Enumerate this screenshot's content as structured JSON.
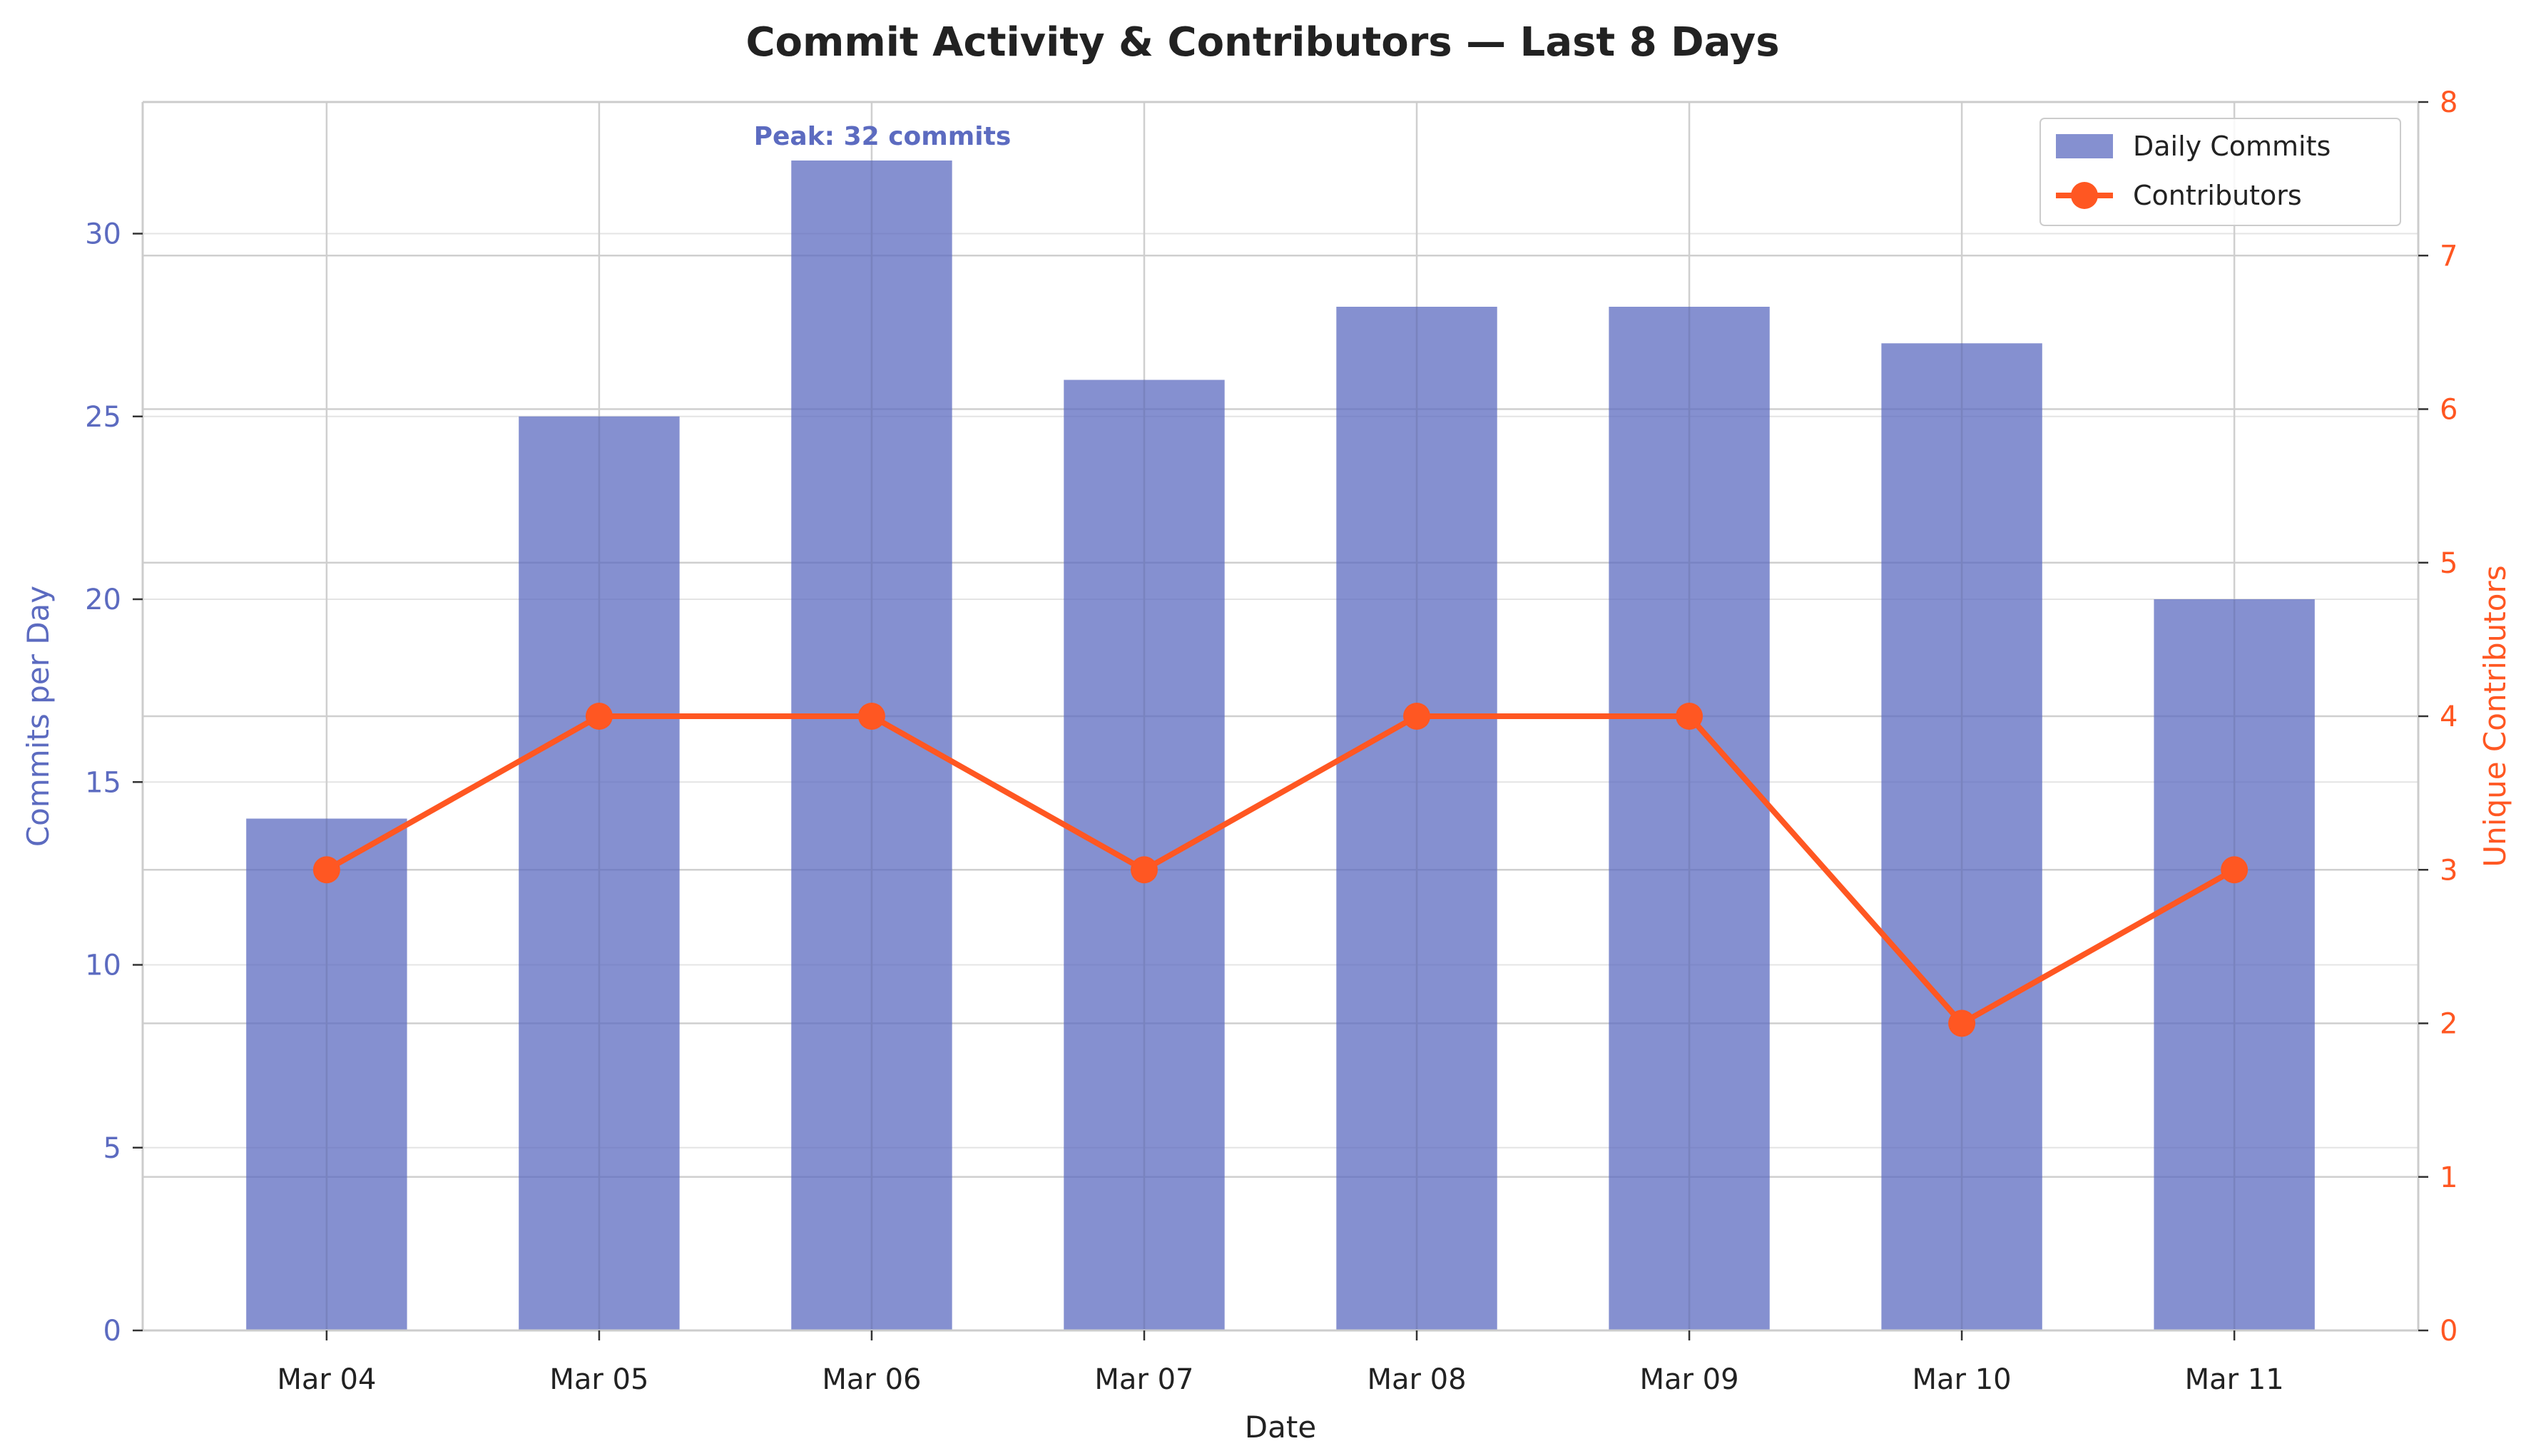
{
  "chart_data": {
    "type": "bar",
    "title": "Commit Activity & Contributors — Last 8 Days",
    "xlabel": "Date",
    "ylabel_left": "Commits per Day",
    "ylabel_right": "Unique Contributors",
    "categories": [
      "Mar 04",
      "Mar 05",
      "Mar 06",
      "Mar 07",
      "Mar 08",
      "Mar 09",
      "Mar 10",
      "Mar 11"
    ],
    "series": [
      {
        "name": "Daily Commits",
        "type": "bar",
        "axis": "left",
        "color": "#5c6bc0",
        "values": [
          14,
          25,
          32,
          26,
          28,
          28,
          27,
          20
        ]
      },
      {
        "name": "Contributors",
        "type": "line",
        "axis": "right",
        "color": "#ff5722",
        "values": [
          3,
          4,
          4,
          3,
          4,
          4,
          2,
          3
        ]
      }
    ],
    "ylim_left": [
      0,
      33.6
    ],
    "yticks_left": [
      0,
      5,
      10,
      15,
      20,
      25,
      30
    ],
    "ylim_right": [
      0,
      8
    ],
    "yticks_right": [
      0,
      1,
      2,
      3,
      4,
      5,
      6,
      7,
      8
    ],
    "annotation": {
      "text": "Peak: 32 commits",
      "category": "Mar 06",
      "value": 32
    },
    "legend": {
      "position": "top-right"
    },
    "grid": true
  }
}
